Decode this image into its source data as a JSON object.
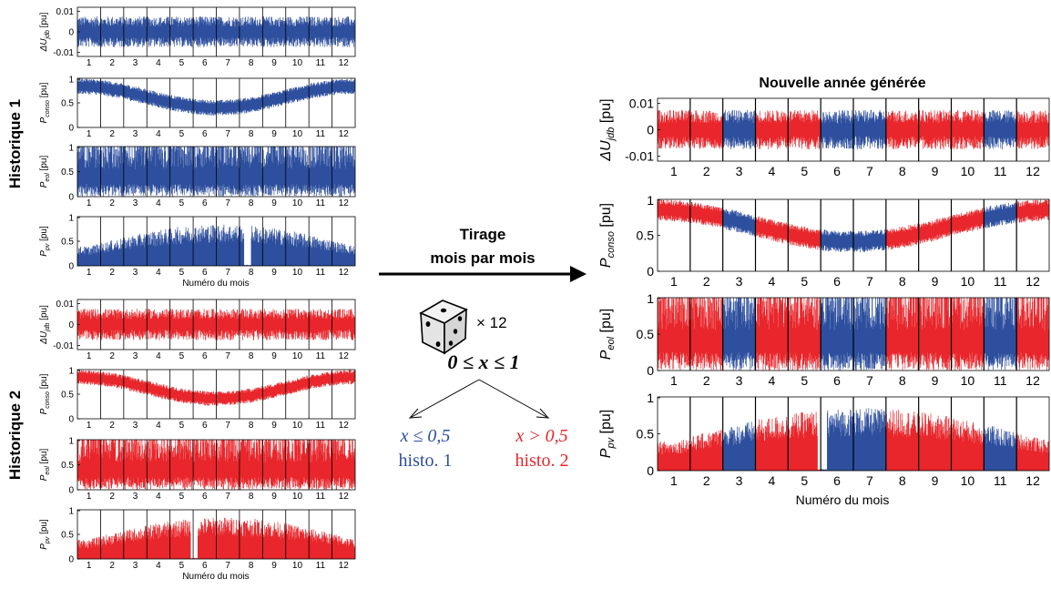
{
  "colors": {
    "histo1": "#2d4f9e",
    "histo2": "#e8262b",
    "axis": "#000000"
  },
  "left": {
    "group1_label": "Historique 1",
    "group2_label": "Historique 2",
    "month_axis_label": "Numéro du mois",
    "month_ticks": [
      "1",
      "2",
      "3",
      "4",
      "5",
      "6",
      "7",
      "8",
      "9",
      "10",
      "11",
      "12"
    ]
  },
  "panels": [
    {
      "id": "du",
      "ylabel_main": "ΔU",
      "ylabel_sub": "jdb",
      "ylabel_unit": "[pu]",
      "yticks": [
        "0.01",
        "0",
        "-0.01"
      ]
    },
    {
      "id": "conso",
      "ylabel_main": "P",
      "ylabel_sub": "conso",
      "ylabel_unit": "[pu]",
      "yticks": [
        "1",
        "0.5",
        "0"
      ]
    },
    {
      "id": "eol",
      "ylabel_main": "P",
      "ylabel_sub": "eol",
      "ylabel_unit": "[pu]",
      "yticks": [
        "1",
        "0.5",
        "0"
      ]
    },
    {
      "id": "pv",
      "ylabel_main": "P",
      "ylabel_sub": "pv",
      "ylabel_unit": "[pu]",
      "yticks": [
        "1",
        "0.5",
        "0"
      ]
    }
  ],
  "middle": {
    "tirage_line1": "Tirage",
    "tirage_line2": "mois par mois",
    "dice_count": "× 12",
    "condition": "0 ≤ x ≤ 1",
    "branch_left_cond": "x ≤ 0,5",
    "branch_left_label": "histo. 1",
    "branch_right_cond": "x > 0,5",
    "branch_right_label": "histo. 2"
  },
  "right": {
    "title": "Nouvelle année générée",
    "month_axis_label": "Numéro du mois",
    "month_ticks": [
      "1",
      "2",
      "3",
      "4",
      "5",
      "6",
      "7",
      "8",
      "9",
      "10",
      "11",
      "12"
    ],
    "month_sources": [
      2,
      2,
      1,
      2,
      2,
      1,
      1,
      2,
      2,
      2,
      1,
      2
    ]
  }
}
